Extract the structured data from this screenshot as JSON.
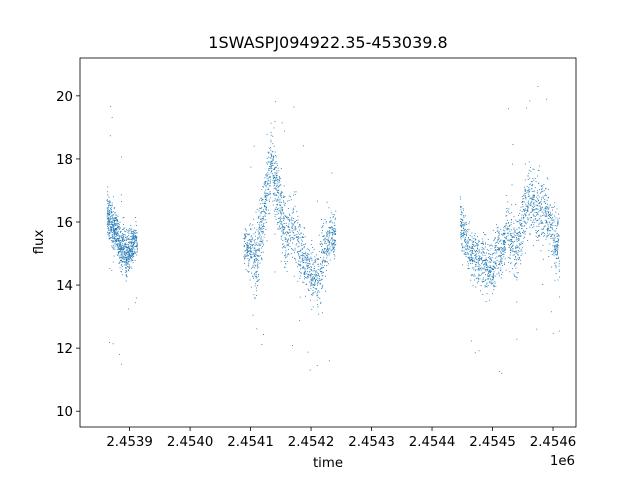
{
  "chart_data": {
    "type": "scatter",
    "title": "1SWASPJ094922.35-453039.8",
    "xlabel": "time",
    "ylabel": "flux",
    "x_offset_label": "1e6",
    "x_tick_labels": [
      "2.4539",
      "2.4540",
      "2.4541",
      "2.4542",
      "2.4543",
      "2.4544",
      "2.4545",
      "2.4546"
    ],
    "x_ticks": [
      2453900,
      2454000,
      2454100,
      2454200,
      2454300,
      2454400,
      2454500,
      2454600
    ],
    "y_tick_labels": [
      "10",
      "12",
      "14",
      "16",
      "18",
      "20"
    ],
    "y_ticks": [
      10,
      12,
      14,
      16,
      18,
      20
    ],
    "xlim": [
      2453818,
      2454638
    ],
    "ylim": [
      9.5,
      21.2
    ],
    "grid": false,
    "marker_color": "#1f77b4",
    "series": [
      {
        "x": [
          2453862,
          2453866,
          2453870,
          2453874,
          2453878,
          2453882,
          2453886,
          2453890,
          2453894,
          2453898,
          2453902,
          2453906,
          2454088,
          2454096,
          2454104,
          2454110,
          2454116,
          2454122,
          2454128,
          2454134,
          2454140,
          2454146,
          2454152,
          2454158,
          2454168,
          2454178,
          2454186,
          2454194,
          2454202,
          2454210,
          2454218,
          2454226,
          2454234,
          2454446,
          2454452,
          2454460,
          2454468,
          2454476,
          2454484,
          2454492,
          2454500,
          2454508,
          2454516,
          2454524,
          2454532,
          2454540,
          2454548,
          2454556,
          2454564,
          2454572,
          2454580,
          2454588,
          2454596,
          2454604
        ],
        "y": [
          16.3,
          16.1,
          15.9,
          15.7,
          15.8,
          15.2,
          15.0,
          15.3,
          14.9,
          15.1,
          15.2,
          15.4,
          15.3,
          15.2,
          15.0,
          14.8,
          15.8,
          16.4,
          17.2,
          17.9,
          17.3,
          16.8,
          16.0,
          15.6,
          15.9,
          15.3,
          14.9,
          14.6,
          14.3,
          14.2,
          14.8,
          15.3,
          15.6,
          16.0,
          15.7,
          15.1,
          15.0,
          14.8,
          14.9,
          14.6,
          14.5,
          15.2,
          15.0,
          15.8,
          15.3,
          15.2,
          15.9,
          16.6,
          16.8,
          16.4,
          16.3,
          16.4,
          15.9,
          15.3
        ],
        "spread": [
          0.6,
          0.6,
          0.6,
          0.5,
          0.5,
          0.6,
          0.6,
          0.6,
          0.6,
          0.5,
          0.5,
          0.5,
          0.5,
          0.8,
          0.9,
          0.9,
          1.0,
          1.0,
          0.9,
          0.9,
          0.9,
          1.0,
          1.0,
          0.9,
          0.9,
          0.8,
          0.8,
          0.8,
          0.7,
          0.9,
          0.8,
          0.6,
          0.6,
          0.6,
          0.7,
          0.7,
          0.7,
          0.8,
          0.8,
          0.7,
          0.7,
          0.7,
          0.7,
          0.8,
          0.8,
          0.8,
          0.9,
          0.9,
          0.9,
          0.9,
          0.9,
          0.9,
          0.9,
          0.9
        ]
      }
    ]
  }
}
